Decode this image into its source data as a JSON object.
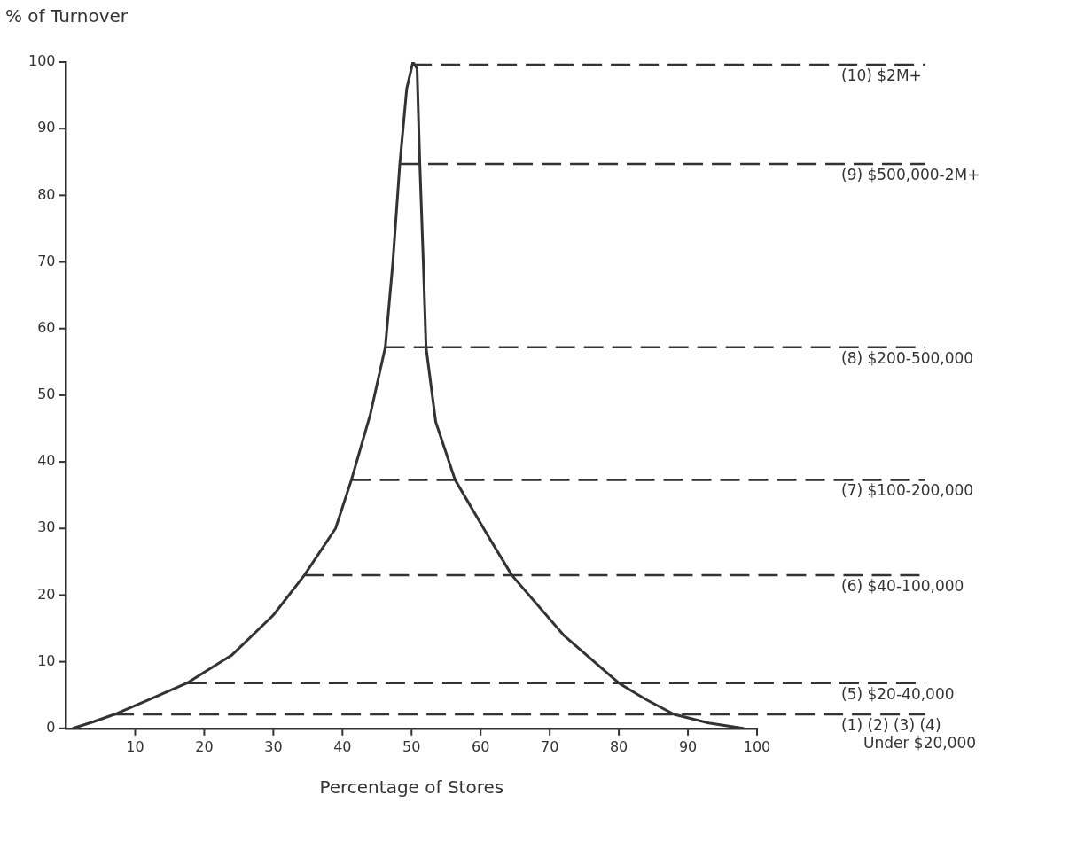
{
  "chart_data": {
    "type": "line",
    "xlabel": "Percentage of Stores",
    "ylabel": "% of Turnover",
    "xlim": [
      0,
      100
    ],
    "xticks": [
      10,
      20,
      30,
      40,
      50,
      60,
      70,
      80,
      90,
      100
    ],
    "ylim": [
      0,
      100
    ],
    "yticks": [
      0,
      10,
      20,
      30,
      40,
      50,
      60,
      70,
      80,
      90,
      100
    ],
    "grid": false,
    "marker": "none",
    "series": [
      {
        "color": "#333333",
        "x": [
          1,
          4,
          7,
          12,
          17.5,
          24,
          30,
          34.5,
          39,
          41.3,
          44,
          46.2,
          47.3,
          48.3,
          49.3,
          50.2,
          50.8,
          51.2,
          51.7,
          52.1,
          53.5,
          56.3,
          61,
          64.5,
          72,
          80,
          84,
          88,
          93,
          98
        ],
        "values": [
          0,
          1,
          2.1,
          4.3,
          6.8,
          11,
          17,
          23,
          30,
          37.3,
          47,
          57.2,
          70,
          84.7,
          96,
          100,
          99,
          84.7,
          70,
          57.2,
          46,
          37.3,
          29,
          23,
          14,
          6.8,
          4.3,
          2.1,
          0.8,
          0
        ]
      }
    ],
    "ref_lines": [
      {
        "axis": "y",
        "value": 99.6,
        "color": "#333333",
        "line_style": "dashed"
      },
      {
        "axis": "y",
        "value": 84.7,
        "color": "#333333",
        "line_style": "dashed"
      },
      {
        "axis": "y",
        "value": 57.2,
        "color": "#333333",
        "line_style": "dashed"
      },
      {
        "axis": "y",
        "value": 37.3,
        "color": "#333333",
        "line_style": "dashed"
      },
      {
        "axis": "y",
        "value": 23,
        "color": "#333333",
        "line_style": "dashed"
      },
      {
        "axis": "y",
        "value": 6.8,
        "color": "#333333",
        "line_style": "dashed"
      },
      {
        "axis": "y",
        "value": 2.1,
        "color": "#333333",
        "line_style": "dashed"
      }
    ],
    "annotations": [
      "(10) $2M+",
      "(9) $500,000-2M+",
      "(8) $200-500,000",
      "(7) $100-200,000",
      "(6) $40-100,000",
      "(5) $20-40,000",
      "(1) (2) (3) (4)\nUnder $20,000"
    ]
  }
}
